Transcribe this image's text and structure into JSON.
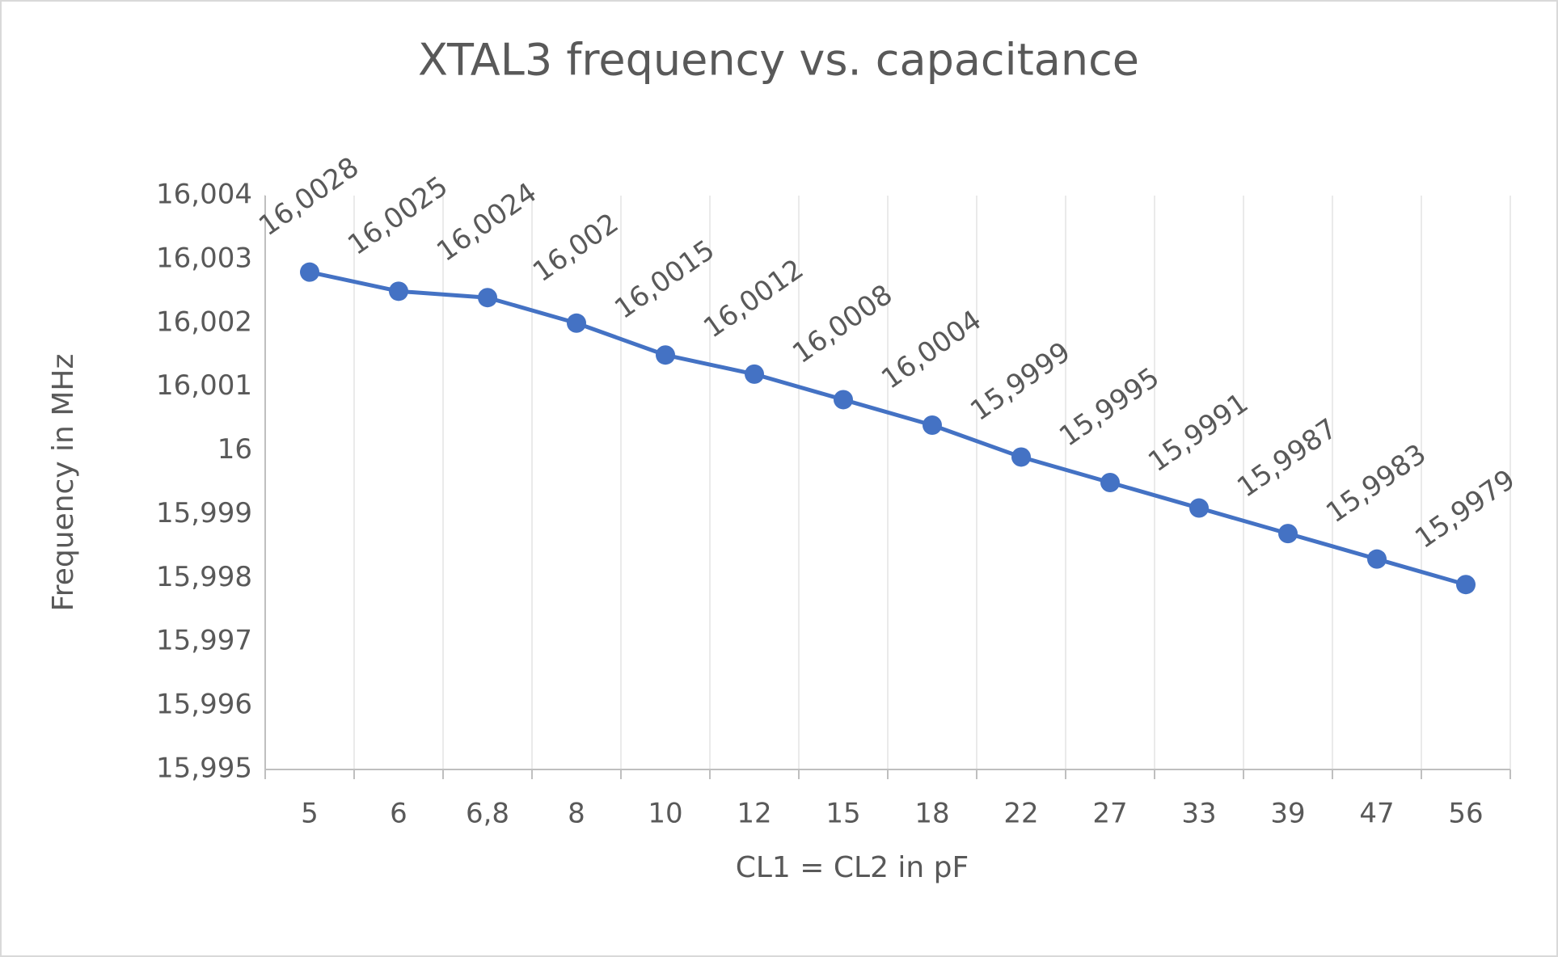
{
  "chart_data": {
    "type": "line",
    "title": "XTAL3 frequency vs. capacitance",
    "x_label": "CL1 = CL2 in pF",
    "y_label": "Frequency in MHz",
    "categories": [
      "5",
      "6",
      "6,8",
      "8",
      "10",
      "12",
      "15",
      "18",
      "22",
      "27",
      "33",
      "39",
      "47",
      "56"
    ],
    "series": [
      {
        "name": "Frequency",
        "color": "#4472c4",
        "values": [
          16.0028,
          16.0025,
          16.0024,
          16.002,
          16.0015,
          16.0012,
          16.0008,
          16.0004,
          15.9999,
          15.9995,
          15.9991,
          15.9987,
          15.9983,
          15.9979
        ],
        "value_labels": [
          "16,0028",
          "16,0025",
          "16,0024",
          "16,002",
          "16,0015",
          "16,0012",
          "16,0008",
          "16,0004",
          "15,9999",
          "15,9995",
          "15,9991",
          "15,9987",
          "15,9983",
          "15,9979"
        ]
      }
    ],
    "ylim": [
      15.995,
      16.004
    ],
    "yticks": [
      {
        "value": 15.995,
        "label": "15,995"
      },
      {
        "value": 15.996,
        "label": "15,996"
      },
      {
        "value": 15.997,
        "label": "15,997"
      },
      {
        "value": 15.998,
        "label": "15,998"
      },
      {
        "value": 15.999,
        "label": "15,999"
      },
      16,
      {
        "value": 16.001,
        "label": "16,001"
      },
      {
        "value": 16.002,
        "label": "16,002"
      },
      {
        "value": 16.003,
        "label": "16,003"
      },
      {
        "value": 16.004,
        "label": "16,004"
      }
    ],
    "grid": "x"
  }
}
